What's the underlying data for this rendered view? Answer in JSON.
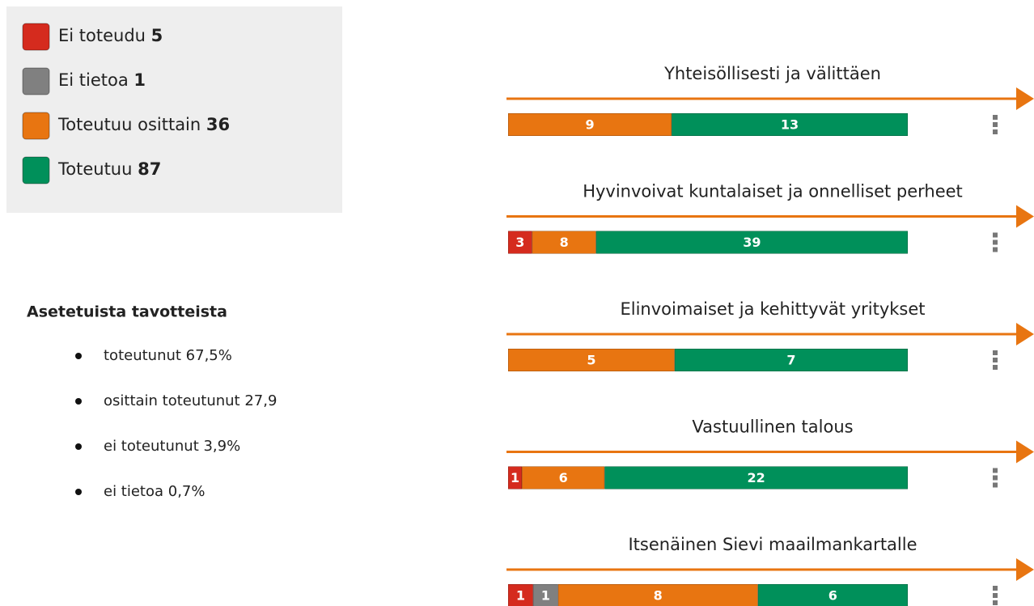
{
  "legend": [
    {
      "label": "Ei toteudu",
      "count": 5,
      "color": "#d52b1e"
    },
    {
      "label": "Ei tietoa",
      "count": 1,
      "color": "#808080"
    },
    {
      "label": "Toteutuu osittain",
      "count": 36,
      "color": "#e87511"
    },
    {
      "label": "Toteutuu",
      "count": 87,
      "color": "#00905a"
    }
  ],
  "summary": {
    "heading": "Asetetuista tavotteista",
    "items": [
      "toteutunut 67,5%",
      "osittain toteutunut 27,9",
      "ei toteutunut 3,9%",
      "ei tietoa 0,7%"
    ]
  },
  "goals": [
    {
      "title": "Yhteisöllisesti ja välittäen",
      "segments": [
        {
          "value": 9,
          "color": "#e87511"
        },
        {
          "value": 13,
          "color": "#00905a"
        }
      ]
    },
    {
      "title": "Hyvinvoivat kuntalaiset ja onnelliset perheet",
      "segments": [
        {
          "value": 3,
          "color": "#d52b1e"
        },
        {
          "value": 8,
          "color": "#e87511"
        },
        {
          "value": 39,
          "color": "#00905a"
        }
      ]
    },
    {
      "title": "Elinvoimaiset ja kehittyvät yritykset",
      "segments": [
        {
          "value": 5,
          "color": "#e87511"
        },
        {
          "value": 7,
          "color": "#00905a"
        }
      ]
    },
    {
      "title": "Vastuullinen talous",
      "segments": [
        {
          "value": 1,
          "color": "#d52b1e"
        },
        {
          "value": 6,
          "color": "#e87511"
        },
        {
          "value": 22,
          "color": "#00905a"
        }
      ]
    },
    {
      "title": "Itsenäinen Sievi maailmankartalle",
      "segments": [
        {
          "value": 1,
          "color": "#d52b1e"
        },
        {
          "value": 1,
          "color": "#808080"
        },
        {
          "value": 8,
          "color": "#e87511"
        },
        {
          "value": 6,
          "color": "#00905a"
        }
      ]
    }
  ]
}
